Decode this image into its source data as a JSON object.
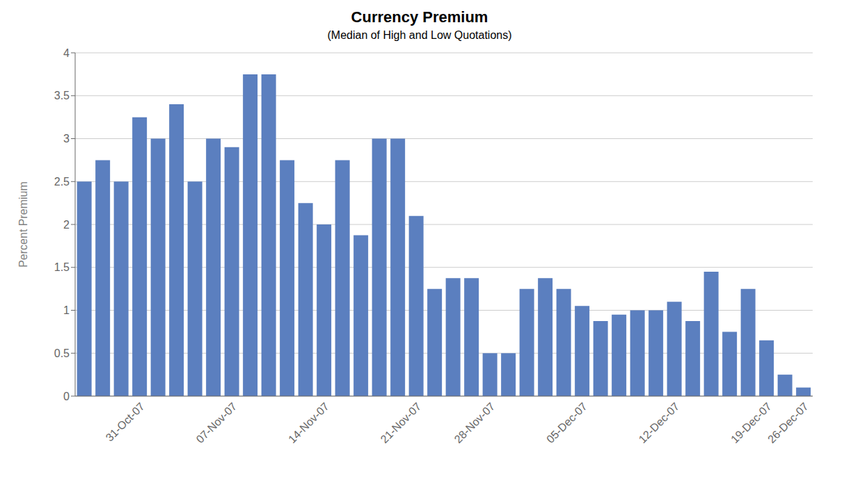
{
  "chart_data": {
    "type": "bar",
    "title": "Currency Premium",
    "subtitle": "(Median of High and Low Quotations)",
    "ylabel": "Percent Premium",
    "categories": [
      null,
      null,
      null,
      "31-Oct-07",
      null,
      null,
      null,
      null,
      "07-Nov-07",
      null,
      null,
      null,
      null,
      "14-Nov-07",
      null,
      null,
      null,
      null,
      "21-Nov-07",
      null,
      null,
      null,
      "28-Nov-07",
      null,
      null,
      null,
      null,
      "05-Dec-07",
      null,
      null,
      null,
      null,
      "12-Dec-07",
      null,
      null,
      null,
      null,
      "19-Dec-07",
      null,
      "26-Dec-07"
    ],
    "values": [
      2.5,
      2.75,
      2.5,
      3.25,
      3.0,
      3.4,
      2.5,
      3.0,
      2.9,
      3.75,
      3.75,
      2.75,
      2.25,
      2.0,
      2.75,
      1.875,
      3.0,
      3.0,
      2.1,
      1.25,
      1.375,
      1.375,
      0.5,
      0.5,
      1.25,
      1.375,
      1.25,
      1.05,
      0.875,
      0.95,
      1.0,
      1.0,
      1.1,
      0.875,
      1.45,
      0.75,
      1.25,
      0.65,
      0.25,
      0.1
    ],
    "color": "#5B7FBF",
    "ylim": [
      0,
      4
    ],
    "yticks": [
      0,
      0.5,
      1,
      1.5,
      2,
      2.5,
      3,
      3.5,
      4
    ],
    "grid": true
  }
}
